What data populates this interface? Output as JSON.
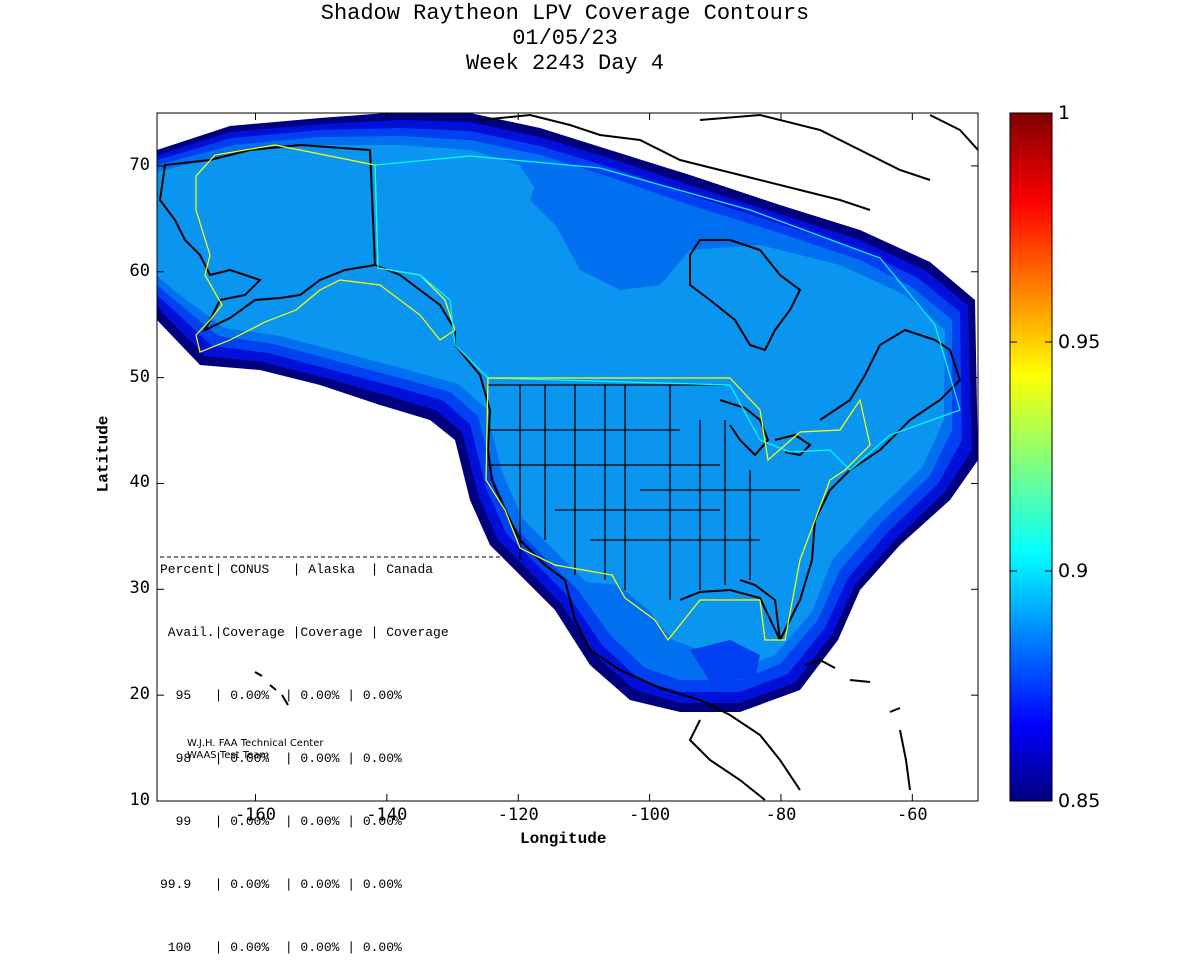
{
  "title": {
    "line1": "Shadow Raytheon LPV Coverage Contours",
    "line2": "01/05/23",
    "line3": "Week 2243 Day 4"
  },
  "axes": {
    "xlabel": "Longitude",
    "ylabel": "Latitude",
    "xlim": [
      -175,
      -50
    ],
    "ylim": [
      10,
      75
    ],
    "xticks": [
      -160,
      -140,
      -120,
      -100,
      -80,
      -60
    ],
    "yticks": [
      10,
      20,
      30,
      40,
      50,
      60,
      70
    ]
  },
  "colorbar": {
    "ticks": [
      "1",
      "0.95",
      "0.9",
      "0.85"
    ],
    "range": [
      0.85,
      1
    ]
  },
  "stats_table": {
    "header1": "Percent| CONUS   | Alaska  | Canada",
    "header2": " Avail.|Coverage |Coverage | Coverage",
    "rows": [
      "  95   | 0.00%  | 0.00% | 0.00%",
      "  98   | 0.00%  | 0.00% | 0.00%",
      "  99   | 0.00%  | 0.00% | 0.00%",
      "99.9   | 0.00%  | 0.00% | 0.00%",
      " 100   | 0.00%  | 0.00% | 0.00%"
    ]
  },
  "credit": {
    "line1": "W.J.H. FAA Technical Center",
    "line2": "WAAS Test Team"
  },
  "colors": {
    "contour_outer": "#00007f",
    "contour_2": "#0010d8",
    "contour_3": "#0040f0",
    "contour_4": "#0070f0",
    "contour_inner": "#0a96f0",
    "service_boundary_yellow": "#ffff00",
    "service_boundary_cyan": "#00ffff"
  },
  "chart_data": {
    "type": "heatmap",
    "title": "Shadow Raytheon LPV Coverage Contours",
    "xlabel": "Longitude",
    "ylabel": "Latitude",
    "xlim": [
      -175,
      -50
    ],
    "ylim": [
      10,
      75
    ],
    "colorbar_range": [
      0.85,
      1
    ],
    "colorbar_ticks": [
      0.85,
      0.9,
      0.95,
      1
    ]
  }
}
